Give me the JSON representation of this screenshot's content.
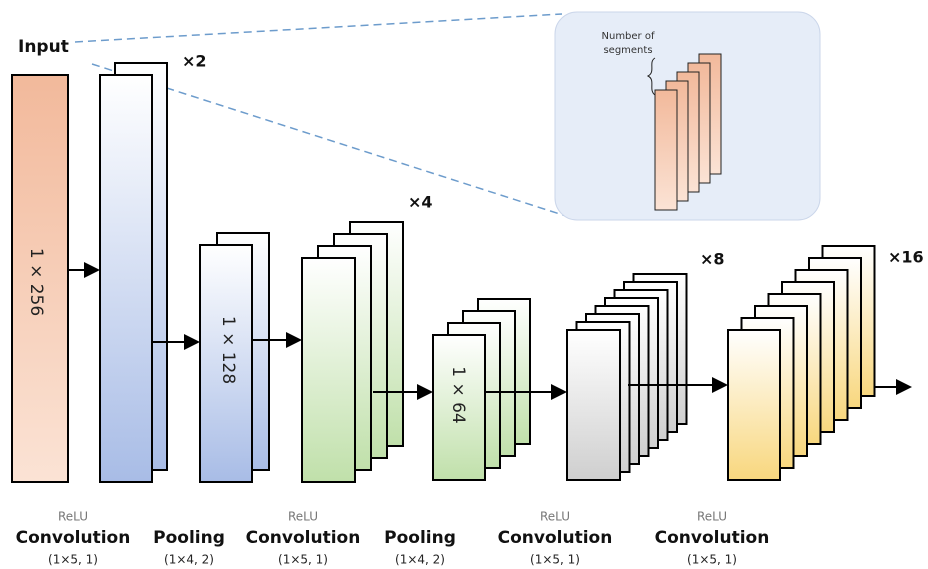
{
  "input_label": "Input",
  "inset_label": [
    "Number of",
    "segments"
  ],
  "multipliers": [
    "×2",
    "×4",
    "×8",
    "×16"
  ],
  "block_labels": [
    "1 × 256",
    "1 × 128",
    "1 × 64"
  ],
  "layers": [
    {
      "activation": "ReLU",
      "name": "Convolution",
      "params": "(1×5, 1)"
    },
    {
      "name": "Pooling",
      "params": "(1×4, 2)"
    },
    {
      "activation": "ReLU",
      "name": "Convolution",
      "params": "(1×5, 1)"
    },
    {
      "name": "Pooling",
      "params": "(1×4, 2)"
    },
    {
      "activation": "ReLU",
      "name": "Convolution",
      "params": "(1×5, 1)"
    },
    {
      "activation": "ReLU",
      "name": "Convolution",
      "params": "(1×5, 1)"
    }
  ]
}
